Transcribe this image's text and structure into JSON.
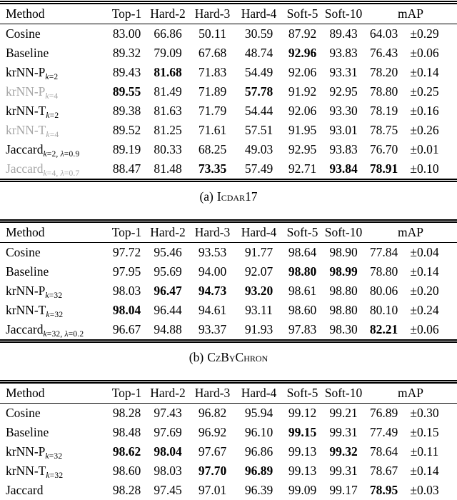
{
  "page": {
    "background": "#ffffff",
    "text_color": "#000000",
    "muted_label_color": "#a6a6a6"
  },
  "tables": [
    {
      "caption_prefix": "(a)",
      "caption_name": "Icdar17",
      "columns": [
        "Method",
        "Top-1",
        "Hard-2",
        "Hard-3",
        "Hard-4",
        "Soft-5",
        "Soft-10",
        "mAP"
      ],
      "rows": [
        {
          "method": "Cosine",
          "sub": "",
          "gray": false,
          "bold": [],
          "values": [
            "83.00",
            "66.86",
            "50.11",
            "30.59",
            "87.92",
            "89.43",
            "64.03",
            "±0.29"
          ]
        },
        {
          "method": "Baseline",
          "sub": "",
          "gray": false,
          "bold": [
            4
          ],
          "values": [
            "89.32",
            "79.09",
            "67.68",
            "48.74",
            "92.96",
            "93.83",
            "76.43",
            "±0.06"
          ]
        },
        {
          "method": "krNN-P",
          "sub": "k=2",
          "gray": false,
          "bold": [
            1
          ],
          "values": [
            "89.43",
            "81.68",
            "71.83",
            "54.49",
            "92.06",
            "93.31",
            "78.20",
            "±0.14"
          ]
        },
        {
          "method": "krNN-P",
          "sub": "k=4",
          "gray": true,
          "bold": [
            0,
            3
          ],
          "values": [
            "89.55",
            "81.49",
            "71.89",
            "57.78",
            "91.92",
            "92.95",
            "78.80",
            "±0.25"
          ]
        },
        {
          "method": "krNN-T",
          "sub": "k=2",
          "gray": false,
          "bold": [],
          "values": [
            "89.38",
            "81.63",
            "71.79",
            "54.44",
            "92.06",
            "93.30",
            "78.19",
            "±0.16"
          ]
        },
        {
          "method": "krNN-T",
          "sub": "k=4",
          "gray": true,
          "bold": [],
          "values": [
            "89.52",
            "81.25",
            "71.61",
            "57.51",
            "91.95",
            "93.01",
            "78.75",
            "±0.26"
          ]
        },
        {
          "method": "Jaccard",
          "sub": "k=2, λ=0.9",
          "gray": false,
          "bold": [],
          "values": [
            "89.19",
            "80.33",
            "68.25",
            "49.03",
            "92.95",
            "93.83",
            "76.70",
            "±0.01"
          ]
        },
        {
          "method": "Jaccard",
          "sub": "k=4, λ=0.7",
          "gray": true,
          "bold": [
            2,
            5,
            6
          ],
          "values": [
            "88.47",
            "81.48",
            "73.35",
            "57.49",
            "92.71",
            "93.84",
            "78.91",
            "±0.10"
          ]
        }
      ]
    },
    {
      "caption_prefix": "(b)",
      "caption_name": "CzByChron",
      "columns": [
        "Method",
        "Top-1",
        "Hard-2",
        "Hard-3",
        "Hard-4",
        "Soft-5",
        "Soft-10",
        "mAP"
      ],
      "rows": [
        {
          "method": "Cosine",
          "sub": "",
          "gray": false,
          "bold": [],
          "values": [
            "97.72",
            "95.46",
            "93.53",
            "91.77",
            "98.64",
            "98.90",
            "77.84",
            "±0.04"
          ]
        },
        {
          "method": "Baseline",
          "sub": "",
          "gray": false,
          "bold": [
            4,
            5
          ],
          "values": [
            "97.95",
            "95.69",
            "94.00",
            "92.07",
            "98.80",
            "98.99",
            "78.80",
            "±0.14"
          ]
        },
        {
          "method": "krNN-P",
          "sub": "k=32",
          "gray": false,
          "bold": [
            1,
            2,
            3
          ],
          "values": [
            "98.03",
            "96.47",
            "94.73",
            "93.20",
            "98.61",
            "98.80",
            "80.06",
            "±0.20"
          ]
        },
        {
          "method": "krNN-T",
          "sub": "k=32",
          "gray": false,
          "bold": [
            0
          ],
          "values": [
            "98.04",
            "96.44",
            "94.61",
            "93.11",
            "98.60",
            "98.80",
            "80.10",
            "±0.24"
          ]
        },
        {
          "method": "Jaccard",
          "sub": "k=32, λ=0.2",
          "gray": false,
          "bold": [
            6
          ],
          "values": [
            "96.67",
            "94.88",
            "93.37",
            "91.93",
            "97.83",
            "98.30",
            "82.21",
            "±0.06"
          ]
        }
      ]
    },
    {
      "caption_prefix": "",
      "caption_name": "",
      "columns": [
        "Method",
        "Top-1",
        "Hard-2",
        "Hard-3",
        "Hard-4",
        "Soft-5",
        "Soft-10",
        "mAP"
      ],
      "rows": [
        {
          "method": "Cosine",
          "sub": "",
          "gray": false,
          "bold": [],
          "values": [
            "98.28",
            "97.43",
            "96.82",
            "95.94",
            "99.12",
            "99.21",
            "76.89",
            "±0.30"
          ]
        },
        {
          "method": "Baseline",
          "sub": "",
          "gray": false,
          "bold": [
            4
          ],
          "values": [
            "98.48",
            "97.69",
            "96.92",
            "96.10",
            "99.15",
            "99.31",
            "77.49",
            "±0.15"
          ]
        },
        {
          "method": "krNN-P",
          "sub": "k=32",
          "gray": false,
          "bold": [
            0,
            1,
            5
          ],
          "values": [
            "98.62",
            "98.04",
            "97.67",
            "96.86",
            "99.13",
            "99.32",
            "78.64",
            "±0.11"
          ]
        },
        {
          "method": "krNN-T",
          "sub": "k=32",
          "gray": false,
          "bold": [
            2,
            3
          ],
          "values": [
            "98.60",
            "98.03",
            "97.70",
            "96.89",
            "99.13",
            "99.31",
            "78.67",
            "±0.14"
          ]
        },
        {
          "method": "Jaccard",
          "sub": "",
          "gray": false,
          "bold": [
            6
          ],
          "values": [
            "98.28",
            "97.45",
            "97.01",
            "96.39",
            "99.09",
            "99.17",
            "78.95",
            "±0.03"
          ]
        }
      ]
    }
  ]
}
